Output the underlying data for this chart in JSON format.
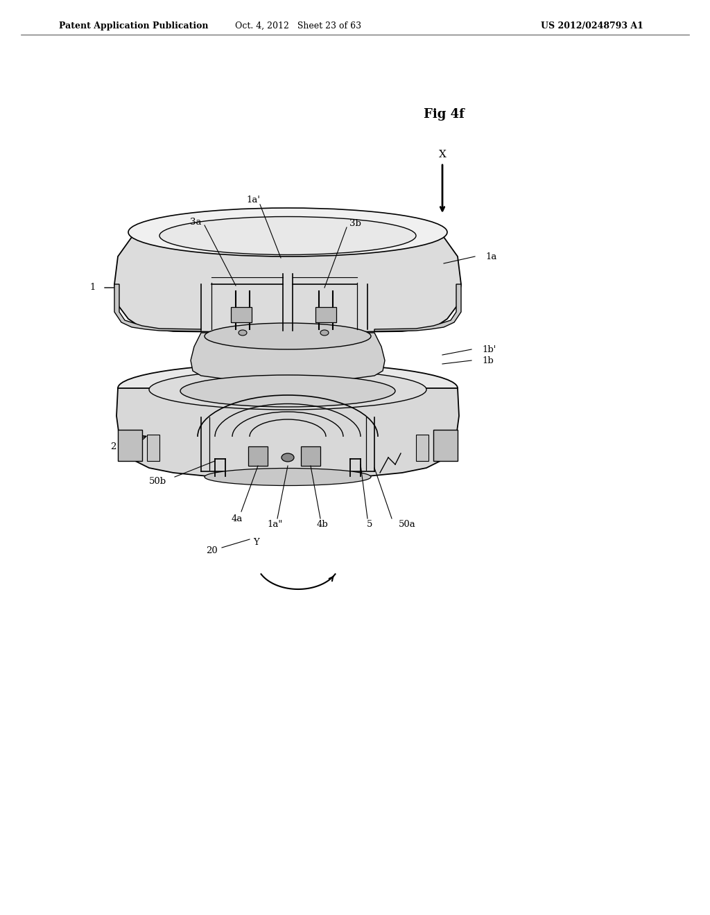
{
  "background_color": "#ffffff",
  "header_left": "Patent Application Publication",
  "header_center": "Oct. 4, 2012   Sheet 23 of 63",
  "header_right": "US 2012/0248793 A1",
  "fig_label": "Fig 4f",
  "header_font_size": 9,
  "fig_font_size": 13,
  "label_font_size": 9.5
}
